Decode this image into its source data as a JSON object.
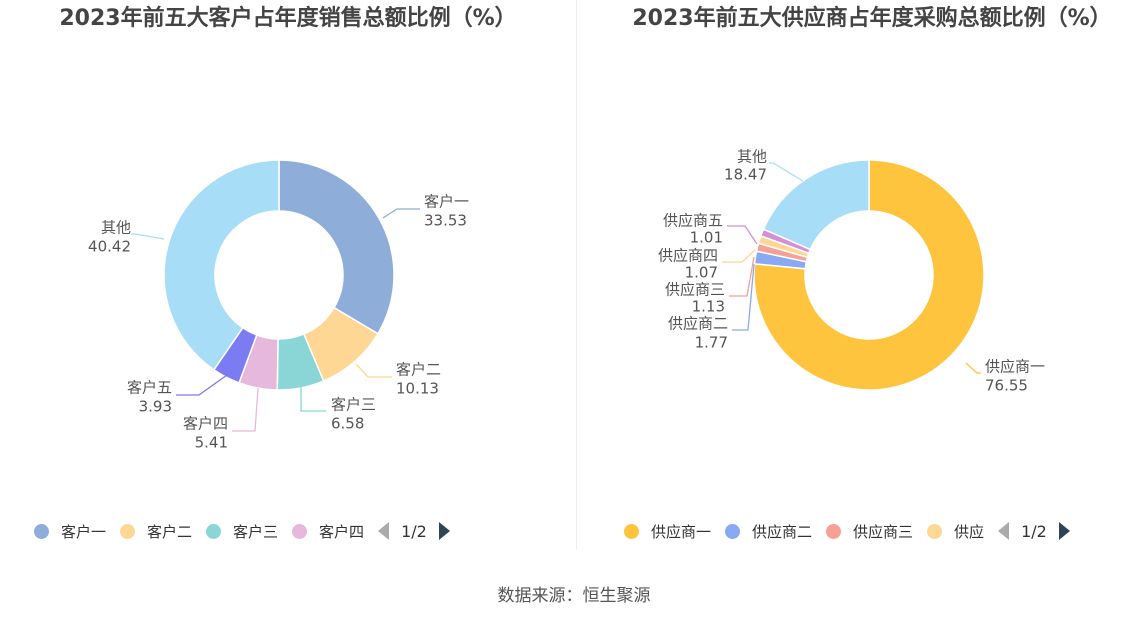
{
  "chart_data": [
    {
      "type": "pie",
      "title": "2023年前五大客户占年度销售总额比例（%）",
      "categories": [
        "客户一",
        "客户二",
        "客户三",
        "客户四",
        "客户五",
        "其他"
      ],
      "values": [
        33.53,
        10.13,
        6.58,
        5.41,
        3.93,
        40.42
      ],
      "value_labels": [
        "33.53",
        "10.13",
        "6.58",
        "5.41",
        "3.93",
        "40.42"
      ],
      "colors": [
        "#8eadd9",
        "#fdd793",
        "#8ad6d6",
        "#e6b8dc",
        "#7b7bf3",
        "#a8ddf8"
      ],
      "legend": {
        "placement": "bottom",
        "items": [
          "客户一",
          "客户二",
          "客户三",
          "客户四"
        ],
        "page": "1/2"
      }
    },
    {
      "type": "pie",
      "title": "2023年前五大供应商占年度采购总额比例（%）",
      "categories": [
        "供应商一",
        "供应商二",
        "供应商三",
        "供应商四",
        "供应商五",
        "其他"
      ],
      "values": [
        76.55,
        1.77,
        1.13,
        1.07,
        1.01,
        18.47
      ],
      "value_labels": [
        "76.55",
        "1.77",
        "1.13",
        "1.07",
        "1.01",
        "18.47"
      ],
      "colors": [
        "#ffc43d",
        "#8aa9f5",
        "#f7a196",
        "#fdd793",
        "#d58fd8",
        "#a8ddf8"
      ],
      "legend": {
        "placement": "bottom",
        "items": [
          "供应商一",
          "供应商二",
          "供应商三",
          "供应"
        ],
        "page": "1/2"
      }
    }
  ],
  "source": "数据来源：恒生聚源"
}
